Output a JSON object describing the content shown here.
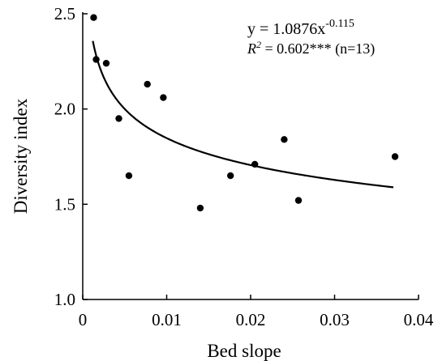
{
  "chart_data": {
    "type": "scatter",
    "xlabel": "Bed slope",
    "ylabel": "Diversity index",
    "xlim": [
      0,
      0.04
    ],
    "ylim": [
      1.0,
      2.5
    ],
    "x_ticks": [
      0,
      0.01,
      0.02,
      0.03,
      0.04
    ],
    "x_tick_labels": [
      "0",
      "0.01",
      "0.02",
      "0.03",
      "0.04"
    ],
    "y_ticks": [
      1.0,
      1.5,
      2.0,
      2.5
    ],
    "y_tick_labels": [
      "1.0",
      "1.5",
      "2.0",
      "2.5"
    ],
    "points": [
      {
        "x": 0.0013,
        "y": 2.48
      },
      {
        "x": 0.0016,
        "y": 2.26
      },
      {
        "x": 0.0028,
        "y": 2.24
      },
      {
        "x": 0.0043,
        "y": 1.95
      },
      {
        "x": 0.0055,
        "y": 1.65
      },
      {
        "x": 0.0077,
        "y": 2.13
      },
      {
        "x": 0.0096,
        "y": 2.06
      },
      {
        "x": 0.014,
        "y": 1.48
      },
      {
        "x": 0.0176,
        "y": 1.65
      },
      {
        "x": 0.0205,
        "y": 1.71
      },
      {
        "x": 0.024,
        "y": 1.84
      },
      {
        "x": 0.0257,
        "y": 1.52
      },
      {
        "x": 0.0372,
        "y": 1.75
      }
    ],
    "fit": {
      "model": "power",
      "a": 1.0876,
      "b": -0.115,
      "x_range": [
        0.0012,
        0.037
      ]
    },
    "annotation": {
      "equation_prefix": "y = 1.0876x",
      "equation_exponent": "-0.115",
      "r2_label": "R",
      "r2_sup": "2",
      "r2_rest": " = 0.602*** (n=13)"
    },
    "grid": false,
    "legend": "none"
  }
}
